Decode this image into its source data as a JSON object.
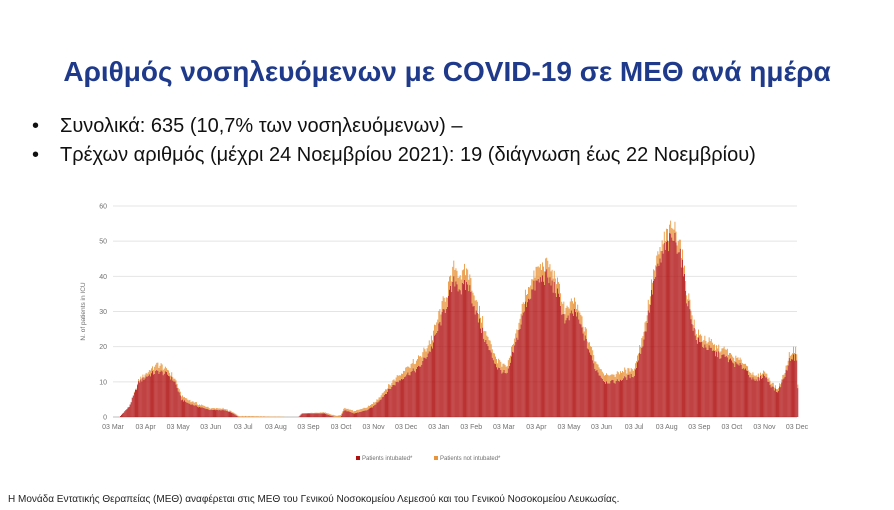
{
  "title": "Αριθμός νοσηλευόμενων με COVID-19 σε ΜΕΘ ανά ημέρα",
  "bullets": [
    "Συνολικά: 635 (10,7% των νοσηλευόμενων) –",
    "Τρέχων αριθμός (μέχρι 24 Νοεμβρίου 2021): 19 (διάγνωση έως 22 Νοεμβρίου)"
  ],
  "footer": "Η Μονάδα Εντατικής Θεραπείας (ΜΕΘ) αναφέρεται στις ΜΕΘ του Γενικού Νοσοκομείου Λεμεσού και του Γενικού Νοσοκομείου Λευκωσίας.",
  "colors": {
    "title": "#1f3a8a",
    "intubated": "#b01010",
    "not_intubated": "#e8943a",
    "grid": "#e4e4e4",
    "axis_text": "#707070"
  },
  "chart_data": {
    "type": "bar",
    "stacked": true,
    "ylabel": "N. of patients in ICU",
    "xlabel": "",
    "ylim": [
      0,
      60
    ],
    "yticks": [
      0,
      10,
      20,
      30,
      40,
      50,
      60
    ],
    "grid": true,
    "legend_position": "bottom",
    "x_tick_labels": [
      "03 Mar",
      "03 Apr",
      "03 May",
      "03 Jun",
      "03 Jul",
      "03 Aug",
      "03 Sep",
      "03 Oct",
      "03 Nov",
      "03 Dec",
      "03 Jan",
      "03 Feb",
      "03 Mar",
      "03 Apr",
      "03 May",
      "03 Jun",
      "03 Jul",
      "03 Aug",
      "03 Sep",
      "03 Oct",
      "03 Nov",
      "03 Dec"
    ],
    "series": [
      {
        "name": "Patients intubated*",
        "keypoints": [
          [
            0,
            0
          ],
          [
            0.2,
            0
          ],
          [
            0.5,
            3
          ],
          [
            0.8,
            10
          ],
          [
            1.1,
            12
          ],
          [
            1.4,
            13
          ],
          [
            1.7,
            12
          ],
          [
            1.9,
            10
          ],
          [
            2.1,
            5
          ],
          [
            2.3,
            4
          ],
          [
            2.6,
            3
          ],
          [
            3.0,
            2
          ],
          [
            3.4,
            2
          ],
          [
            3.7,
            1
          ],
          [
            3.85,
            0
          ],
          [
            5.7,
            0
          ],
          [
            5.8,
            1
          ],
          [
            6.2,
            1
          ],
          [
            6.5,
            1
          ],
          [
            6.8,
            0
          ],
          [
            7.0,
            0
          ],
          [
            7.1,
            2
          ],
          [
            7.4,
            1
          ],
          [
            7.8,
            2
          ],
          [
            8.0,
            3
          ],
          [
            8.3,
            6
          ],
          [
            8.6,
            9
          ],
          [
            9.0,
            12
          ],
          [
            9.4,
            14
          ],
          [
            9.8,
            20
          ],
          [
            10.2,
            31
          ],
          [
            10.5,
            39
          ],
          [
            10.7,
            36
          ],
          [
            10.9,
            38
          ],
          [
            11.2,
            28
          ],
          [
            11.5,
            20
          ],
          [
            11.8,
            14
          ],
          [
            12.1,
            12
          ],
          [
            12.4,
            22
          ],
          [
            12.7,
            33
          ],
          [
            13.0,
            38
          ],
          [
            13.3,
            40
          ],
          [
            13.6,
            36
          ],
          [
            13.9,
            27
          ],
          [
            14.2,
            30
          ],
          [
            14.5,
            22
          ],
          [
            14.8,
            14
          ],
          [
            15.1,
            10
          ],
          [
            15.4,
            10
          ],
          [
            15.7,
            11
          ],
          [
            16.0,
            12
          ],
          [
            16.3,
            22
          ],
          [
            16.6,
            38
          ],
          [
            16.9,
            47
          ],
          [
            17.2,
            51
          ],
          [
            17.4,
            48
          ],
          [
            17.6,
            35
          ],
          [
            17.9,
            22
          ],
          [
            18.2,
            20
          ],
          [
            18.5,
            18
          ],
          [
            18.8,
            17
          ],
          [
            19.1,
            15
          ],
          [
            19.4,
            14
          ],
          [
            19.7,
            10
          ],
          [
            20.0,
            12
          ],
          [
            20.2,
            9
          ],
          [
            20.4,
            7
          ],
          [
            20.6,
            11
          ],
          [
            20.8,
            17
          ],
          [
            21.0,
            17
          ],
          [
            21.05,
            0
          ]
        ]
      },
      {
        "name": "Patients not intubated*",
        "keypoints": [
          [
            0,
            0
          ],
          [
            0.5,
            0
          ],
          [
            1.0,
            1
          ],
          [
            1.4,
            2
          ],
          [
            1.8,
            1
          ],
          [
            2.2,
            1
          ],
          [
            3.0,
            0.5
          ],
          [
            3.8,
            0.3
          ],
          [
            5.7,
            0
          ],
          [
            8.3,
            1
          ],
          [
            9.0,
            2
          ],
          [
            10.0,
            3
          ],
          [
            10.6,
            4
          ],
          [
            11.2,
            3
          ],
          [
            12.0,
            2
          ],
          [
            12.8,
            3
          ],
          [
            13.4,
            4
          ],
          [
            14.0,
            3
          ],
          [
            15.0,
            2
          ],
          [
            16.0,
            2
          ],
          [
            16.8,
            3
          ],
          [
            17.3,
            3
          ],
          [
            17.8,
            2
          ],
          [
            18.8,
            2
          ],
          [
            19.8,
            1
          ],
          [
            20.5,
            1
          ],
          [
            21.0,
            2
          ],
          [
            21.05,
            0
          ]
        ]
      }
    ]
  }
}
